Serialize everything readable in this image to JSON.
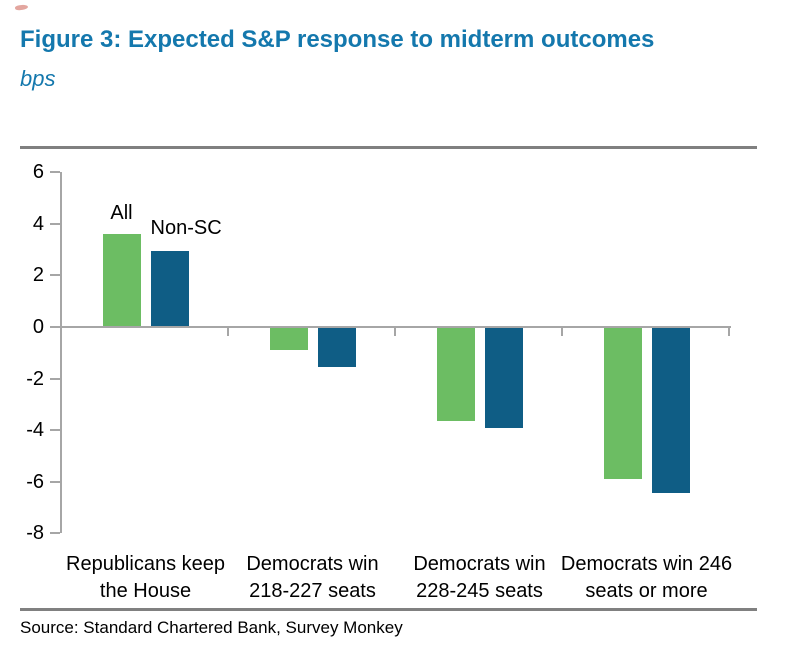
{
  "header": {
    "title": "Figure 3: Expected S&P response to midterm outcomes",
    "subtitle": "bps",
    "title_color": "#1478ad"
  },
  "stray_mark": {
    "color": "#c0392b"
  },
  "chart_data": {
    "type": "bar",
    "title": "Figure 3: Expected S&P response to midterm outcomes",
    "unit_label": "bps",
    "categories": [
      "Republicans keep\nthe House",
      "Democrats win\n218-227 seats",
      "Democrats win\n228-245 seats",
      "Democrats win 246\nseats or more"
    ],
    "series": [
      {
        "name": "All",
        "color": "#6cbd63",
        "values": [
          3.6,
          -0.9,
          -3.65,
          -5.9
        ]
      },
      {
        "name": "Non-SC",
        "color": "#0f5d85",
        "values": [
          2.95,
          -1.55,
          -3.9,
          -6.45
        ]
      }
    ],
    "yticks": [
      6,
      4,
      2,
      0,
      -2,
      -4,
      -6,
      -8
    ],
    "ylim": [
      -8,
      6
    ],
    "grid": false,
    "legend_position": "labels-above-first-bars",
    "axis_color": "#a6a6a6",
    "rule_color": "#808080"
  },
  "footer": {
    "source": "Source: Standard Chartered Bank, Survey Monkey"
  }
}
